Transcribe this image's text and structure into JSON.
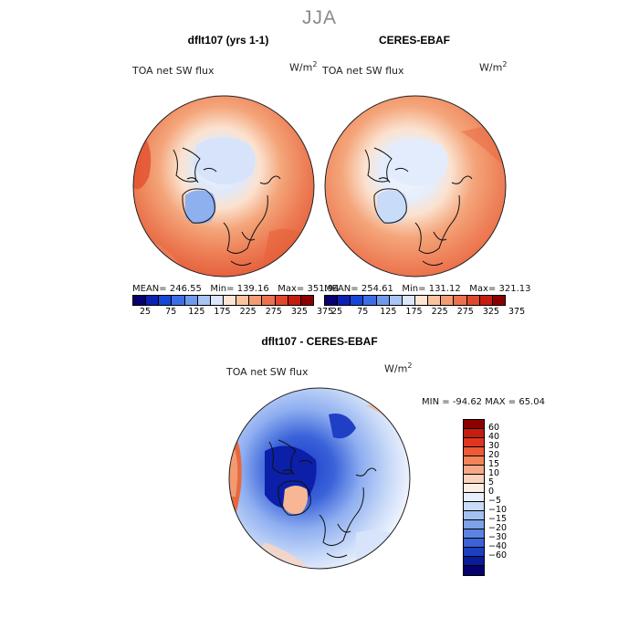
{
  "season": "JJA",
  "panels": [
    {
      "title": "dflt107 (yrs 1-1)",
      "variable": "TOA net SW flux",
      "units": "W/m",
      "units_exp": "2",
      "mean_label": "MEAN=",
      "mean": "246.55",
      "min_label": "Min=",
      "min": "139.16",
      "max_label": "Max=",
      "max": "351.94"
    },
    {
      "title": "CERES-EBAF",
      "variable": "TOA net SW flux",
      "units": "W/m",
      "units_exp": "2",
      "mean_label": "MEAN=",
      "mean": "254.61",
      "min_label": "Min=",
      "min": "131.12",
      "max_label": "Max=",
      "max": "321.13"
    }
  ],
  "abs_colorbar": {
    "colors": [
      "#08006e",
      "#0b21b4",
      "#1746d6",
      "#3b6ee6",
      "#7099ea",
      "#a9c4f2",
      "#dbe7fb",
      "#fbe6d6",
      "#f9c3a0",
      "#f49b74",
      "#ec7150",
      "#e0482e",
      "#c51e10",
      "#8d0000"
    ],
    "labels": [
      "25",
      "75",
      "125",
      "175",
      "225",
      "275",
      "325",
      "375"
    ]
  },
  "diff_panel": {
    "title": "dflt107 - CERES-EBAF",
    "variable": "TOA net SW flux",
    "units": "W/m",
    "units_exp": "2",
    "min_label": "MIN =",
    "min": "-94.62",
    "max_label": "MAX =",
    "max": "65.04"
  },
  "diff_colorbar": {
    "colors": [
      "#8d0000",
      "#c51e10",
      "#e0361f",
      "#ec5a36",
      "#f3845a",
      "#f7a987",
      "#fbd2bb",
      "#fdeee3",
      "#e6effc",
      "#c8dbf8",
      "#a3c0f1",
      "#7ea2ea",
      "#5b84e2",
      "#3b63d6",
      "#1d3fc2",
      "#0a1c9a",
      "#05006e"
    ],
    "labels": [
      "60",
      "40",
      "30",
      "20",
      "15",
      "10",
      "5",
      "0",
      "−5",
      "−10",
      "−15",
      "−20",
      "−30",
      "−40",
      "−60"
    ]
  }
}
